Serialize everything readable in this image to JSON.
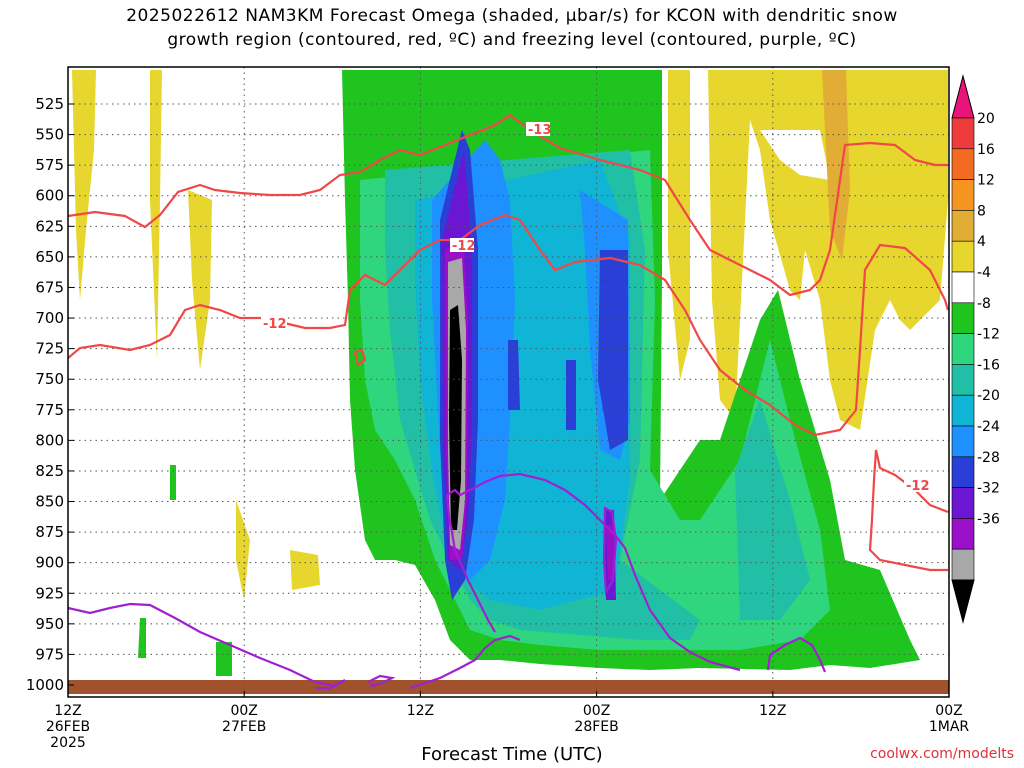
{
  "title_line1": "2025022612 NAM3KM Forecast Omega (shaded, μbar/s) for KCON with dendritic snow",
  "title_line2": "growth region (contoured, red, ºC) and freezing level (contoured, purple, ºC)",
  "xlabel": "Forecast Time (UTC)",
  "credit": "coolwx.com/modelts",
  "chart_data": {
    "type": "heatmap",
    "title": "2025022612 NAM3KM Forecast Omega (shaded, μbar/s) for KCON with dendritic snow growth region (contoured, red, ºC) and freezing level (contoured, purple, ºC)",
    "xlabel": "Forecast Time (UTC)",
    "ylabel": "",
    "x_range_hours": [
      0,
      60
    ],
    "y_range_hpa": [
      1000,
      500
    ],
    "grid": true,
    "yticks": [
      "525",
      "550",
      "575",
      "600",
      "625",
      "650",
      "675",
      "700",
      "725",
      "750",
      "775",
      "800",
      "825",
      "850",
      "875",
      "900",
      "925",
      "950",
      "975",
      "1000"
    ],
    "xticks": [
      {
        "lines": [
          "12Z",
          "26FEB",
          "2025"
        ]
      },
      {
        "lines": [
          "00Z",
          "27FEB"
        ]
      },
      {
        "lines": [
          "12Z"
        ]
      },
      {
        "lines": [
          "00Z",
          "28FEB"
        ]
      },
      {
        "lines": [
          "12Z"
        ]
      },
      {
        "lines": [
          "00Z",
          "1MAR"
        ]
      }
    ],
    "colorbar": {
      "labels": [
        "20",
        "16",
        "12",
        "8",
        "4",
        "-4",
        "-8",
        "-12",
        "-16",
        "-20",
        "-24",
        "-28",
        "-32",
        "-36"
      ],
      "colors": [
        "#e8147a",
        "#ee3b3b",
        "#f26b21",
        "#f5951f",
        "#e2ad35",
        "#e6d62e",
        "#ffffff",
        "#1fc41f",
        "#2fd67d",
        "#21c0a6",
        "#10b5d6",
        "#1e90ff",
        "#2a3fd6",
        "#6a16d2",
        "#9a10c8",
        "#a8a8a8",
        "#000000"
      ]
    },
    "contour_labels": [
      "-13",
      "-12",
      "-12",
      "-12"
    ],
    "series": [
      {
        "name": "dendritic snow growth region (contoured, red, ºC)",
        "color": "#f04848"
      },
      {
        "name": "freezing level (contoured, purple, ºC)",
        "color": "#a020d0"
      }
    ]
  }
}
